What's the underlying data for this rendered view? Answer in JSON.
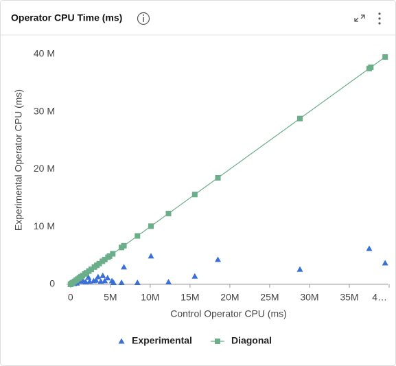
{
  "chart_data": {
    "type": "scatter",
    "title": "Operator CPU Time (ms)",
    "xlabel": "Control Operator CPU (ms)",
    "ylabel": "Experimental Operator CPU (ms)",
    "xlim": [
      -500000,
      40000000
    ],
    "ylim": [
      0,
      42000000
    ],
    "xticks": [
      0,
      {
        "value": 5000000,
        "label": "5M"
      },
      {
        "value": 10000000,
        "label": "10M"
      },
      {
        "value": 15000000,
        "label": "15M"
      },
      {
        "value": 20000000,
        "label": "20M"
      },
      {
        "value": 25000000,
        "label": "25M"
      },
      {
        "value": 30000000,
        "label": "30M"
      },
      {
        "value": 35000000,
        "label": "35M"
      },
      {
        "value": 40000000,
        "label": "4…"
      }
    ],
    "yticks": [
      0,
      {
        "value": 10000000,
        "label": "10 M"
      },
      {
        "value": 20000000,
        "label": "20 M"
      },
      {
        "value": 30000000,
        "label": "30 M"
      },
      {
        "value": 40000000,
        "label": "40 M"
      }
    ],
    "grid": false,
    "legend": "bottom",
    "series": [
      {
        "name": "Experimental",
        "color": "#3a6fd8",
        "marker": "triangle",
        "x": [
          0,
          430000,
          780000,
          1290000,
          1550000,
          1900000,
          2240000,
          2400000,
          2900000,
          3200000,
          3450000,
          3800000,
          4050000,
          4300000,
          4650000,
          5200000,
          5400000,
          6400000,
          6700000,
          8400000,
          10100000,
          12300000,
          15600000,
          18500000,
          28800000,
          37500000,
          39500000
        ],
        "values": [
          0,
          100000,
          200000,
          500000,
          700000,
          400000,
          1200000,
          500000,
          600000,
          700000,
          1300000,
          500000,
          1500000,
          600000,
          1100000,
          600000,
          300000,
          300000,
          3000000,
          300000,
          4900000,
          400000,
          1400000,
          4300000,
          2600000,
          6200000,
          3700000
        ]
      },
      {
        "name": "Diagonal",
        "color": "#6aae8a",
        "marker": "square",
        "line": true,
        "x": [
          0,
          100000,
          200000,
          300000,
          500000,
          700000,
          900000,
          1100000,
          1300000,
          1500000,
          1800000,
          2000000,
          2300000,
          2600000,
          3000000,
          3300000,
          3600000,
          4000000,
          4300000,
          4700000,
          4900000,
          5300000,
          6400000,
          6700000,
          8400000,
          10100000,
          12300000,
          15600000,
          18500000,
          28800000,
          37500000,
          37700000,
          39500000
        ],
        "values": [
          0,
          100000,
          200000,
          300000,
          500000,
          700000,
          900000,
          1100000,
          1300000,
          1500000,
          1800000,
          2000000,
          2300000,
          2600000,
          3000000,
          3300000,
          3600000,
          4000000,
          4300000,
          4700000,
          4900000,
          5300000,
          6400000,
          6700000,
          8400000,
          10100000,
          12300000,
          15600000,
          18500000,
          28800000,
          37500000,
          37700000,
          39500000
        ]
      }
    ]
  }
}
